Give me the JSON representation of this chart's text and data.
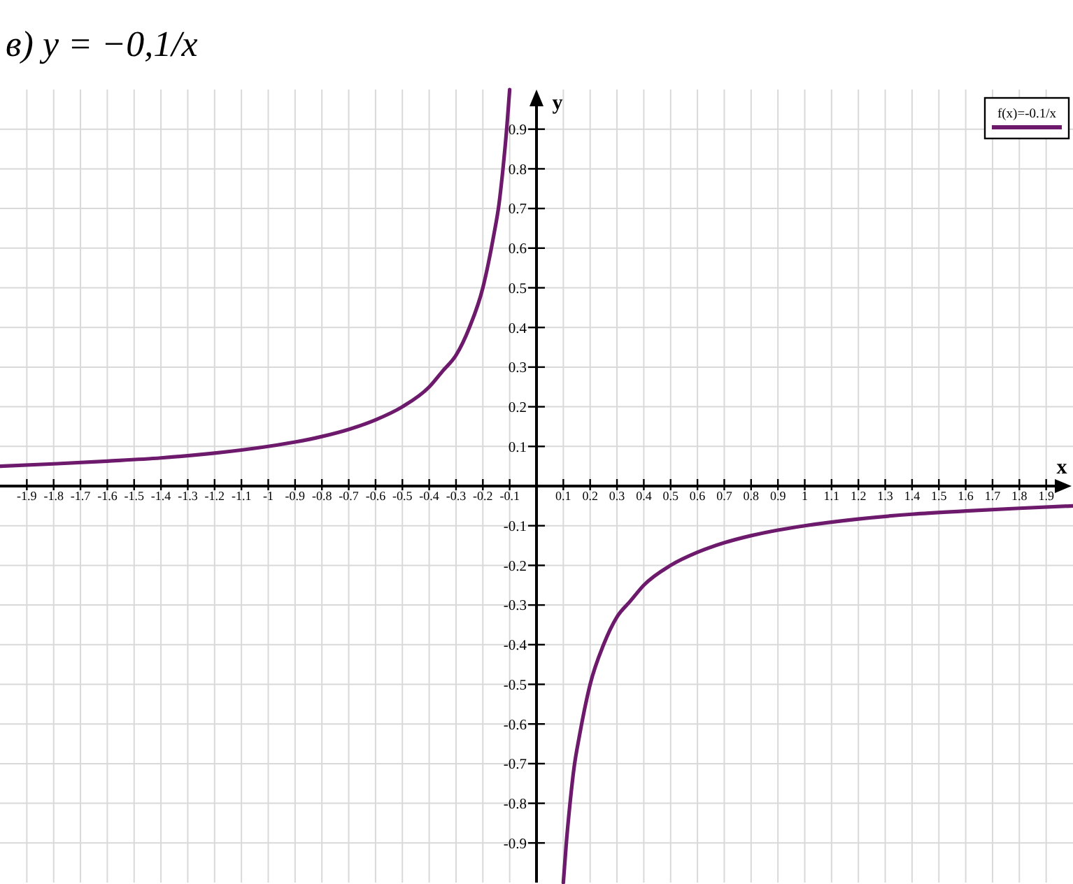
{
  "chart_data": {
    "type": "line",
    "title": "в) y = −0,1/x",
    "xlabel": "x",
    "ylabel": "y",
    "x": [
      -2,
      -1.8,
      -1.6,
      -1.4,
      -1.2,
      -1,
      -0.9,
      -0.8,
      -0.7,
      -0.6,
      -0.5,
      -0.4,
      -0.35,
      -0.3,
      -0.25,
      -0.2,
      -0.18,
      -0.16,
      -0.14,
      -0.125,
      -0.11,
      -0.1,
      0,
      0.1,
      0.11,
      0.125,
      0.14,
      0.16,
      0.18,
      0.2,
      0.25,
      0.3,
      0.35,
      0.4,
      0.5,
      0.6,
      0.7,
      0.8,
      0.9,
      1,
      1.2,
      1.4,
      1.6,
      1.8,
      2
    ],
    "series": [
      {
        "name": "f(x)=-0.1/x",
        "color": "#6d1a6d",
        "values": [
          0.05,
          0.056,
          0.063,
          0.071,
          0.083,
          0.1,
          0.111,
          0.125,
          0.143,
          0.167,
          0.2,
          0.25,
          0.29,
          0.33,
          0.4,
          0.5,
          0.56,
          0.63,
          0.71,
          0.8,
          0.91,
          1,
          null,
          -1,
          -0.91,
          -0.8,
          -0.71,
          -0.63,
          -0.56,
          -0.5,
          -0.4,
          -0.33,
          -0.29,
          -0.25,
          -0.2,
          -0.167,
          -0.143,
          -0.125,
          -0.111,
          -0.1,
          -0.083,
          -0.071,
          -0.063,
          -0.056,
          -0.05
        ]
      }
    ],
    "xlim": [
      -2,
      2
    ],
    "ylim": [
      -1,
      1
    ],
    "xticks": [
      -1.9,
      -1.8,
      -1.7,
      -1.6,
      -1.5,
      -1.4,
      -1.3,
      -1.2,
      -1.1,
      -1,
      -0.9,
      -0.8,
      -0.7,
      -0.6,
      -0.5,
      -0.4,
      -0.3,
      -0.2,
      -0.1,
      0.1,
      0.2,
      0.3,
      0.4,
      0.5,
      0.6,
      0.7,
      0.8,
      0.9,
      1,
      1.1,
      1.2,
      1.3,
      1.4,
      1.5,
      1.6,
      1.7,
      1.8,
      1.9
    ],
    "yticks": [
      0.1,
      0.2,
      0.3,
      0.4,
      0.5,
      0.6,
      0.7,
      0.8,
      0.9,
      -0.1,
      -0.2,
      -0.3,
      -0.4,
      -0.5,
      -0.6,
      -0.7,
      -0.8,
      -0.9
    ],
    "grid": true,
    "legend": "top right",
    "line_style": "solid"
  }
}
